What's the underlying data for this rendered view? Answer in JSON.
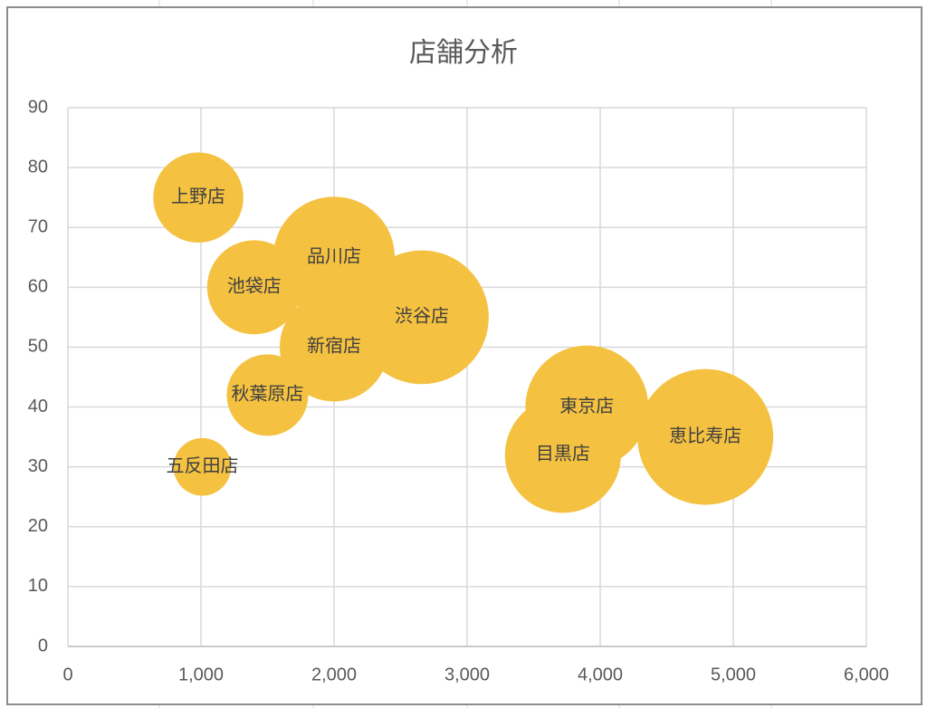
{
  "chart_data": {
    "type": "bubble",
    "title": "店舗分析",
    "categories": [
      "上野店",
      "五反田店",
      "池袋店",
      "品川店",
      "新宿店",
      "秋葉原店",
      "渋谷店",
      "東京店",
      "目黒店",
      "恵比寿店"
    ],
    "x": [
      980,
      1010,
      1400,
      2000,
      2000,
      1500,
      2660,
      3900,
      3720,
      4790
    ],
    "values": [
      75,
      30,
      60,
      65,
      50,
      42,
      55,
      40,
      32,
      35
    ],
    "sizes": [
      44,
      18,
      48,
      80,
      64,
      36,
      97,
      82,
      73,
      100
    ],
    "color": "#f4c141",
    "xlim": [
      0,
      6000
    ],
    "xticks": [
      0,
      {
        "value": 1000,
        "label": "1,000"
      },
      {
        "value": 2000,
        "label": "2,000"
      },
      {
        "value": 3000,
        "label": "3,000"
      },
      {
        "value": 4000,
        "label": "4,000"
      },
      {
        "value": 5000,
        "label": "5,000"
      },
      {
        "value": 6000,
        "label": "6,000"
      }
    ],
    "ylim": [
      0,
      90
    ],
    "yticks": [
      0,
      10,
      20,
      30,
      40,
      50,
      60,
      70,
      80,
      90
    ],
    "grid": true
  }
}
